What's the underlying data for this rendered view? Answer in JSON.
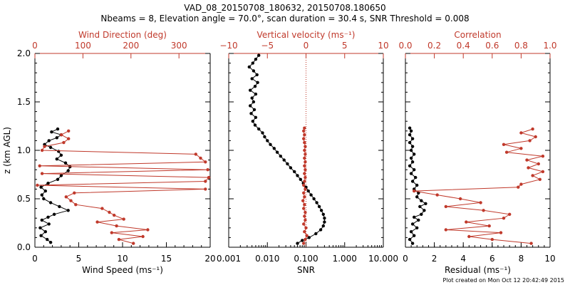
{
  "title_line1": "VAD_08_20150708_180632, 20150708.180650",
  "title_line2": "Nbeams = 8, Elevation angle = 70.0°, scan duration = 30.4 s, SNR Threshold = 0.008",
  "footer": "Plot created on Mon Oct 12 20:42:49 2015",
  "colors": {
    "primary": "#000000",
    "secondary": "#c0392b"
  },
  "chart_data": [
    {
      "type": "line",
      "panel": "left",
      "ylabel": "z (km AGL)",
      "ylim": [
        0.0,
        2.0
      ],
      "yticks": [
        "0.0",
        "0.5",
        "1.0",
        "1.5",
        "2.0"
      ],
      "bottom_axis": {
        "label": "Wind Speed (ms⁻¹)",
        "range": [
          0,
          20
        ],
        "ticks": [
          "0",
          "5",
          "10",
          "15",
          "20"
        ]
      },
      "top_axis": {
        "label": "Wind Direction (deg)",
        "range": [
          0,
          365
        ],
        "ticks": [
          "0",
          "100",
          "200",
          "300"
        ],
        "tick_values": [
          0,
          100,
          200,
          300
        ]
      },
      "series": [
        {
          "color": "#000000",
          "axis": "bottom",
          "points": [
            [
              1.8,
              0.05
            ],
            [
              1.4,
              0.08
            ],
            [
              0.7,
              0.12
            ],
            [
              1.2,
              0.16
            ],
            [
              0.6,
              0.2
            ],
            [
              1.6,
              0.24
            ],
            [
              0.8,
              0.28
            ],
            [
              1.5,
              0.31
            ],
            [
              2.2,
              0.34
            ],
            [
              3.8,
              0.38
            ],
            [
              2.8,
              0.42
            ],
            [
              1.8,
              0.46
            ],
            [
              1.0,
              0.5
            ],
            [
              0.8,
              0.54
            ],
            [
              1.2,
              0.58
            ],
            [
              0.7,
              0.62
            ],
            [
              1.5,
              0.66
            ],
            [
              2.6,
              0.7
            ],
            [
              3.0,
              0.74
            ],
            [
              3.8,
              0.79
            ],
            [
              4.0,
              0.83
            ],
            [
              3.5,
              0.87
            ],
            [
              2.5,
              0.91
            ],
            [
              3.0,
              0.95
            ],
            [
              2.7,
              0.99
            ],
            [
              1.8,
              1.03
            ],
            [
              1.1,
              1.06
            ],
            [
              1.6,
              1.1
            ],
            [
              2.5,
              1.13
            ],
            [
              3.0,
              1.16
            ],
            [
              1.9,
              1.19
            ],
            [
              2.6,
              1.22
            ]
          ]
        },
        {
          "color": "#c0392b",
          "axis": "top",
          "points": [
            [
              205,
              0.04
            ],
            [
              175,
              0.08
            ],
            [
              225,
              0.11
            ],
            [
              160,
              0.15
            ],
            [
              235,
              0.18
            ],
            [
              170,
              0.22
            ],
            [
              130,
              0.26
            ],
            [
              185,
              0.29
            ],
            [
              165,
              0.33
            ],
            [
              155,
              0.36
            ],
            [
              140,
              0.4
            ],
            [
              85,
              0.44
            ],
            [
              75,
              0.48
            ],
            [
              65,
              0.52
            ],
            [
              82,
              0.56
            ],
            [
              355,
              0.6
            ],
            [
              5,
              0.64
            ],
            [
              355,
              0.68
            ],
            [
              362,
              0.72
            ],
            [
              15,
              0.76
            ],
            [
              360,
              0.8
            ],
            [
              10,
              0.84
            ],
            [
              355,
              0.88
            ],
            [
              345,
              0.92
            ],
            [
              335,
              0.96
            ],
            [
              15,
              1.0
            ],
            [
              20,
              1.04
            ],
            [
              60,
              1.08
            ],
            [
              70,
              1.12
            ],
            [
              55,
              1.16
            ],
            [
              70,
              1.2
            ]
          ]
        }
      ]
    },
    {
      "type": "line",
      "panel": "middle",
      "ylim": [
        0.0,
        2.0
      ],
      "bottom_axis": {
        "label": "SNR",
        "scale": "log",
        "range": [
          0.001,
          10.0
        ],
        "ticks": [
          "0.001",
          "0.010",
          "0.100",
          "1.000",
          "10.000"
        ],
        "tick_values": [
          0.001,
          0.01,
          0.1,
          1,
          10
        ]
      },
      "top_axis": {
        "label": "Vertical velocity (ms⁻¹)",
        "range": [
          -10,
          10
        ],
        "ticks": [
          "−10",
          "−5",
          "0",
          "5",
          "10"
        ],
        "tick_values": [
          -10,
          -5,
          0,
          5,
          10
        ]
      },
      "zero_line": {
        "axis": "top",
        "value": 0,
        "style": "dotted"
      },
      "series": [
        {
          "color": "#000000",
          "axis": "bottom",
          "points": [
            [
              0.06,
              0.04
            ],
            [
              0.08,
              0.07
            ],
            [
              0.12,
              0.1
            ],
            [
              0.18,
              0.14
            ],
            [
              0.24,
              0.18
            ],
            [
              0.28,
              0.22
            ],
            [
              0.3,
              0.26
            ],
            [
              0.3,
              0.3
            ],
            [
              0.28,
              0.34
            ],
            [
              0.25,
              0.38
            ],
            [
              0.22,
              0.42
            ],
            [
              0.19,
              0.46
            ],
            [
              0.16,
              0.5
            ],
            [
              0.135,
              0.54
            ],
            [
              0.115,
              0.58
            ],
            [
              0.1,
              0.62
            ],
            [
              0.085,
              0.66
            ],
            [
              0.072,
              0.7
            ],
            [
              0.06,
              0.74
            ],
            [
              0.05,
              0.78
            ],
            [
              0.04,
              0.82
            ],
            [
              0.033,
              0.86
            ],
            [
              0.027,
              0.9
            ],
            [
              0.022,
              0.94
            ],
            [
              0.018,
              0.98
            ],
            [
              0.015,
              1.02
            ],
            [
              0.012,
              1.06
            ],
            [
              0.01,
              1.1
            ],
            [
              0.0085,
              1.14
            ],
            [
              0.0075,
              1.18
            ],
            [
              0.006,
              1.22
            ],
            [
              0.0048,
              1.26
            ],
            [
              0.0042,
              1.3
            ],
            [
              0.005,
              1.34
            ],
            [
              0.0038,
              1.38
            ],
            [
              0.0046,
              1.42
            ],
            [
              0.0036,
              1.46
            ],
            [
              0.0044,
              1.5
            ],
            [
              0.004,
              1.54
            ],
            [
              0.005,
              1.58
            ],
            [
              0.0036,
              1.62
            ],
            [
              0.0048,
              1.66
            ],
            [
              0.0056,
              1.7
            ],
            [
              0.004,
              1.74
            ],
            [
              0.0054,
              1.78
            ],
            [
              0.0044,
              1.82
            ],
            [
              0.0034,
              1.86
            ],
            [
              0.0042,
              1.9
            ],
            [
              0.005,
              1.94
            ],
            [
              0.006,
              1.98
            ]
          ]
        },
        {
          "color": "#c0392b",
          "axis": "top",
          "points": [
            [
              -0.3,
              0.04
            ],
            [
              -0.1,
              0.08
            ],
            [
              0.1,
              0.12
            ],
            [
              -0.2,
              0.16
            ],
            [
              0.0,
              0.2
            ],
            [
              -0.3,
              0.24
            ],
            [
              -0.1,
              0.28
            ],
            [
              -0.2,
              0.32
            ],
            [
              -0.1,
              0.36
            ],
            [
              -0.3,
              0.4
            ],
            [
              -0.2,
              0.44
            ],
            [
              -0.4,
              0.48
            ],
            [
              -0.2,
              0.52
            ],
            [
              -0.3,
              0.56
            ],
            [
              -0.1,
              0.6
            ],
            [
              -0.3,
              0.64
            ],
            [
              -0.2,
              0.68
            ],
            [
              -0.1,
              0.72
            ],
            [
              -0.2,
              0.76
            ],
            [
              -0.1,
              0.8
            ],
            [
              -0.2,
              0.84
            ],
            [
              -0.1,
              0.88
            ],
            [
              -0.2,
              0.92
            ],
            [
              -0.1,
              0.96
            ],
            [
              -0.2,
              1.0
            ],
            [
              -0.1,
              1.04
            ],
            [
              -0.2,
              1.08
            ],
            [
              -0.3,
              1.12
            ],
            [
              -0.2,
              1.16
            ],
            [
              -0.3,
              1.2
            ],
            [
              -0.2,
              1.23
            ]
          ]
        }
      ]
    },
    {
      "type": "line",
      "panel": "right",
      "ylim": [
        0.0,
        2.0
      ],
      "bottom_axis": {
        "label": "Residual (ms⁻¹)",
        "range": [
          0,
          10
        ],
        "ticks": [
          "0",
          "2",
          "4",
          "6",
          "8",
          "10"
        ]
      },
      "top_axis": {
        "label": "Correlation",
        "range": [
          0.0,
          1.0
        ],
        "ticks": [
          "0.0",
          "0.2",
          "0.4",
          "0.6",
          "0.8",
          "1.0"
        ],
        "tick_values": [
          0,
          0.2,
          0.4,
          0.6,
          0.8,
          1.0
        ]
      },
      "series": [
        {
          "color": "#000000",
          "axis": "bottom",
          "points": [
            [
              0.5,
              0.04
            ],
            [
              0.3,
              0.08
            ],
            [
              0.6,
              0.12
            ],
            [
              0.4,
              0.16
            ],
            [
              0.8,
              0.2
            ],
            [
              0.5,
              0.24
            ],
            [
              0.9,
              0.28
            ],
            [
              0.6,
              0.31
            ],
            [
              1.1,
              0.34
            ],
            [
              1.3,
              0.38
            ],
            [
              1.0,
              0.42
            ],
            [
              1.4,
              0.45
            ],
            [
              1.1,
              0.48
            ],
            [
              0.8,
              0.52
            ],
            [
              0.9,
              0.56
            ],
            [
              0.6,
              0.6
            ],
            [
              0.8,
              0.64
            ],
            [
              0.5,
              0.68
            ],
            [
              0.7,
              0.72
            ],
            [
              0.4,
              0.76
            ],
            [
              0.6,
              0.8
            ],
            [
              0.3,
              0.84
            ],
            [
              0.5,
              0.88
            ],
            [
              0.4,
              0.92
            ],
            [
              0.6,
              0.96
            ],
            [
              0.4,
              1.0
            ],
            [
              0.5,
              1.04
            ],
            [
              0.3,
              1.08
            ],
            [
              0.5,
              1.12
            ],
            [
              0.3,
              1.16
            ],
            [
              0.4,
              1.2
            ],
            [
              0.3,
              1.23
            ]
          ]
        },
        {
          "color": "#c0392b",
          "axis": "top",
          "points": [
            [
              0.87,
              0.04
            ],
            [
              0.6,
              0.08
            ],
            [
              0.44,
              0.11
            ],
            [
              0.66,
              0.15
            ],
            [
              0.28,
              0.18
            ],
            [
              0.58,
              0.22
            ],
            [
              0.42,
              0.26
            ],
            [
              0.68,
              0.3
            ],
            [
              0.72,
              0.34
            ],
            [
              0.54,
              0.38
            ],
            [
              0.28,
              0.42
            ],
            [
              0.52,
              0.46
            ],
            [
              0.38,
              0.5
            ],
            [
              0.22,
              0.54
            ],
            [
              0.06,
              0.58
            ],
            [
              0.78,
              0.62
            ],
            [
              0.8,
              0.65
            ],
            [
              0.93,
              0.7
            ],
            [
              0.88,
              0.74
            ],
            [
              0.95,
              0.78
            ],
            [
              0.85,
              0.82
            ],
            [
              0.92,
              0.86
            ],
            [
              0.84,
              0.9
            ],
            [
              0.95,
              0.94
            ],
            [
              0.7,
              0.98
            ],
            [
              0.8,
              1.02
            ],
            [
              0.68,
              1.06
            ],
            [
              0.86,
              1.1
            ],
            [
              0.9,
              1.14
            ],
            [
              0.8,
              1.18
            ],
            [
              0.88,
              1.22
            ]
          ]
        }
      ]
    }
  ]
}
